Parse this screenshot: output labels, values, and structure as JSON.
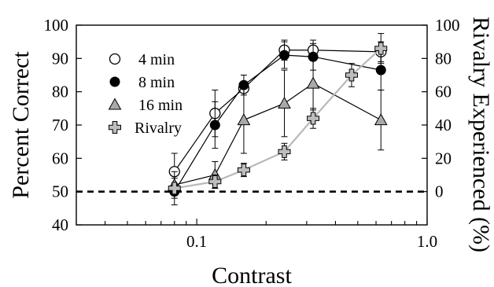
{
  "chart_data": {
    "type": "line",
    "xlabel": "Contrast",
    "ylabel": "Percent Correct",
    "y2label": "Rivalry Experienced (%)",
    "xscale": "log",
    "xlim": [
      0.03,
      1.0
    ],
    "ylim": [
      40,
      100
    ],
    "y2lim": [
      -20,
      100
    ],
    "x_ticks": [
      0.1,
      1.0
    ],
    "x_tick_labels": [
      "0.1",
      "1.0"
    ],
    "y_ticks": [
      40,
      50,
      60,
      70,
      80,
      90,
      100
    ],
    "y_tick_labels": [
      "40",
      "50",
      "60",
      "70",
      "80",
      "90",
      "100"
    ],
    "y2_ticks": [
      0,
      20,
      40,
      60,
      80,
      100
    ],
    "y2_tick_labels": [
      "0",
      "20",
      "40",
      "60",
      "80",
      "100"
    ],
    "chance_line": 50,
    "legend_position": "upper-left inside",
    "series": [
      {
        "name": "4 min",
        "marker": "circle-open",
        "color": "#000000",
        "x": [
          0.08,
          0.12,
          0.16,
          0.24,
          0.32,
          0.63
        ],
        "y": [
          56,
          73.5,
          81,
          92.5,
          92.5,
          92
        ],
        "err": [
          5.5,
          7,
          0,
          3,
          3,
          3
        ]
      },
      {
        "name": "8 min",
        "marker": "circle-filled",
        "color": "#000000",
        "x": [
          0.08,
          0.12,
          0.16,
          0.24,
          0.32,
          0.63
        ],
        "y": [
          50,
          70,
          82,
          91,
          90.5,
          86.5
        ],
        "err": [
          4,
          7,
          3,
          4,
          4,
          6
        ]
      },
      {
        "name": "16 min",
        "marker": "triangle",
        "color": "#aaaaaa",
        "x": [
          0.08,
          0.12,
          0.16,
          0.24,
          0.32,
          0.63
        ],
        "y": [
          52,
          55,
          71.5,
          76.5,
          82.5,
          71.5
        ],
        "err": [
          4,
          4,
          10,
          10,
          8,
          9
        ]
      },
      {
        "name": "Rivalry",
        "marker": "cross",
        "color": "#c4c4c4",
        "axis": "right",
        "x": [
          0.08,
          0.12,
          0.16,
          0.24,
          0.32,
          0.47,
          0.63
        ],
        "y": [
          2,
          6,
          13,
          24,
          44,
          70,
          86
        ],
        "err": [
          3,
          4,
          4,
          5,
          6,
          7,
          9
        ]
      }
    ]
  }
}
